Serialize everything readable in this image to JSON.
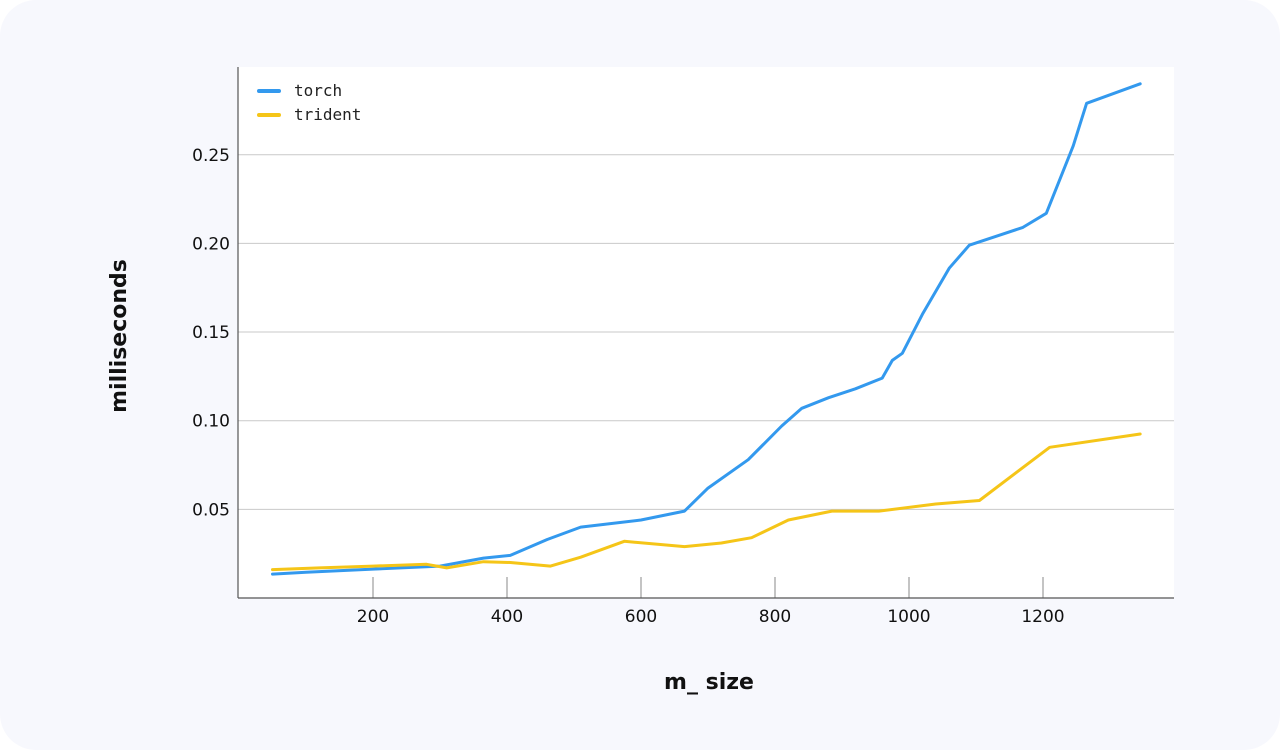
{
  "chart_data": {
    "type": "line",
    "title": "",
    "xlabel": "m_ size",
    "ylabel": "milliseconds",
    "xlim": [
      0,
      1400
    ],
    "ylim": [
      0.0,
      0.3
    ],
    "xticks": [
      200,
      400,
      600,
      800,
      1000,
      1200
    ],
    "yticks": [
      0.05,
      0.1,
      0.15,
      0.2,
      0.25
    ],
    "ytick_labels": [
      "0.05",
      "0.10",
      "0.15",
      "0.20",
      "0.25"
    ],
    "grid": "horizontal",
    "legend_position": "top-left",
    "series": [
      {
        "name": "torch",
        "color": "#3399ee",
        "x": [
          50,
          100,
          200,
          300,
          365,
          405,
          460,
          510,
          600,
          665,
          700,
          760,
          810,
          840,
          880,
          920,
          960,
          975,
          990,
          1020,
          1060,
          1090,
          1130,
          1170,
          1205,
          1245,
          1265,
          1345
        ],
        "y": [
          0.0135,
          0.0145,
          0.0163,
          0.018,
          0.0225,
          0.024,
          0.033,
          0.04,
          0.044,
          0.049,
          0.062,
          0.078,
          0.097,
          0.107,
          0.113,
          0.118,
          0.124,
          0.134,
          0.138,
          0.16,
          0.186,
          0.199,
          0.204,
          0.209,
          0.217,
          0.255,
          0.279,
          0.29
        ]
      },
      {
        "name": "trident",
        "color": "#f5c518",
        "x": [
          50,
          120,
          200,
          280,
          310,
          365,
          405,
          465,
          510,
          575,
          665,
          720,
          765,
          820,
          885,
          955,
          1040,
          1105,
          1210,
          1345
        ],
        "y": [
          0.016,
          0.017,
          0.018,
          0.019,
          0.017,
          0.0205,
          0.02,
          0.018,
          0.023,
          0.032,
          0.029,
          0.031,
          0.034,
          0.044,
          0.049,
          0.049,
          0.053,
          0.055,
          0.085,
          0.0925
        ]
      }
    ]
  }
}
